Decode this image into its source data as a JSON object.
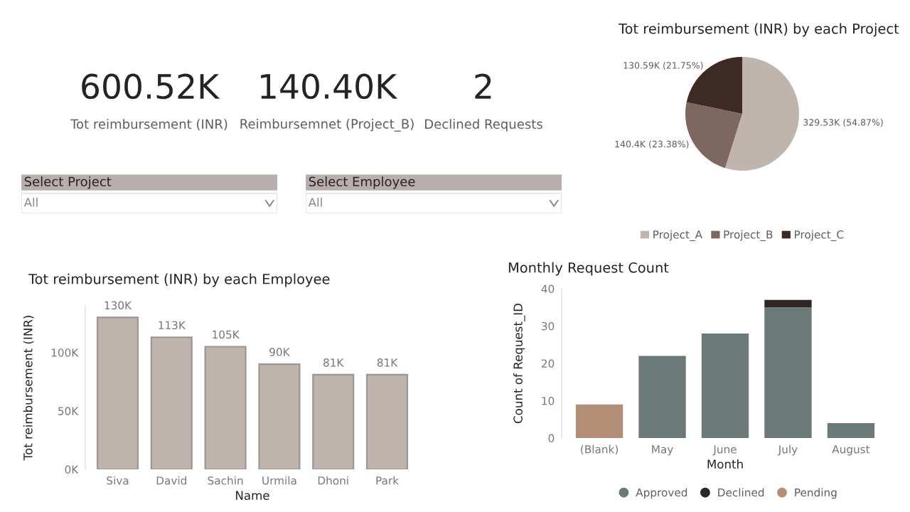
{
  "chart_data": [
    {
      "type": "other",
      "title": "600.52K",
      "subtitle": "Tot reimbursement (INR)"
    },
    {
      "type": "other",
      "title": "140.40K",
      "subtitle": "Reimbursemnet (Project_B)"
    },
    {
      "type": "other",
      "title": "2",
      "subtitle": "Declined Requests"
    },
    {
      "type": "other",
      "title": "Select Project",
      "annotations": [
        "All"
      ]
    },
    {
      "type": "other",
      "title": "Select Employee",
      "annotations": [
        "All"
      ]
    },
    {
      "type": "pie",
      "title": "Tot reimbursement (INR) by each Project",
      "categories": [
        "Project_A",
        "Project_B",
        "Project_C"
      ],
      "values": [
        329530,
        140400,
        130590
      ],
      "value_labels": [
        "329.53K (54.87%)",
        "140.4K (23.38%)",
        "130.59K (21.75%)"
      ],
      "colors": [
        "#c0b4ae",
        "#7e6761",
        "#3d2a25"
      ],
      "legend": "bottom"
    },
    {
      "type": "bar",
      "title": "Tot reimbursement (INR) by each Employee",
      "xlabel": "Name",
      "ylabel": "Tot reimbursement (INR)",
      "categories": [
        "Siva",
        "David",
        "Sachin",
        "Urmila",
        "Dhoni",
        "Park"
      ],
      "values": [
        130000,
        113000,
        105000,
        90000,
        81000,
        81000
      ],
      "value_labels": [
        "130K",
        "113K",
        "105K",
        "90K",
        "81K",
        "81K"
      ],
      "color": "#bfb3ae",
      "ylim": [
        0,
        140000
      ],
      "yticks": [
        {
          "value": 0,
          "label": "0K"
        },
        {
          "value": 50000,
          "label": "50K"
        },
        {
          "value": 100000,
          "label": "100K"
        }
      ],
      "grid": false
    },
    {
      "type": "bar",
      "stacked": true,
      "title": "Monthly Request Count",
      "xlabel": "Month",
      "ylabel": "Count of Request_ID",
      "categories": [
        "(Blank)",
        "May",
        "June",
        "July",
        "August"
      ],
      "series": [
        {
          "name": "Approved",
          "color": "#6b7978",
          "values": [
            0,
            22,
            28,
            35,
            4
          ]
        },
        {
          "name": "Declined",
          "color": "#2f2523",
          "values": [
            0,
            0,
            0,
            2,
            0
          ]
        },
        {
          "name": "Pending",
          "color": "#b38f77",
          "values": [
            9,
            0,
            0,
            0,
            0
          ]
        }
      ],
      "ylim": [
        0,
        40
      ],
      "yticks": [
        0,
        10,
        20,
        30,
        40
      ],
      "grid": false,
      "legend": "bottom"
    }
  ]
}
